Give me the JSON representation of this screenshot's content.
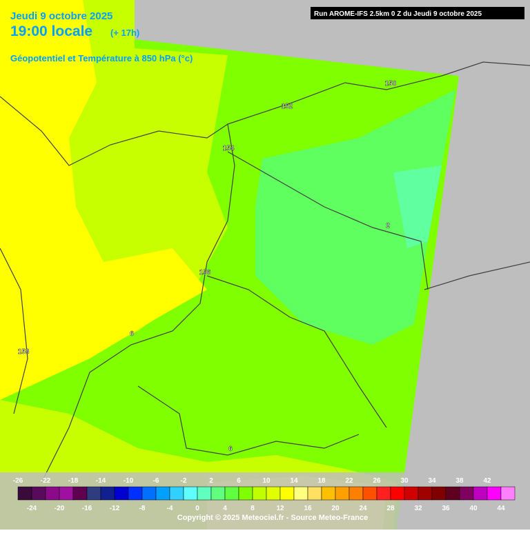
{
  "header": {
    "date": "Jeudi 9 octobre 2025",
    "time": "19:00 locale",
    "lead": "(+ 17h)",
    "field": "Géopotentiel et Température à 850 hPa (°c)",
    "run": "Run AROME-IFS 2.5km 0 Z du Jeudi 9 octobre 2025"
  },
  "contour_labels": [
    {
      "text": "150"
    },
    {
      "text": "152"
    },
    {
      "text": "154"
    },
    {
      "text": "156"
    },
    {
      "text": "158"
    },
    {
      "text": "2"
    },
    {
      "text": "6"
    },
    {
      "text": "6"
    }
  ],
  "legend": {
    "top_labels": [
      -26,
      -22,
      -18,
      -14,
      -10,
      -6,
      -2,
      2,
      6,
      10,
      14,
      18,
      22,
      26,
      30,
      34,
      38,
      42
    ],
    "bottom_labels": [
      -24,
      -20,
      -16,
      -12,
      -8,
      -4,
      0,
      4,
      8,
      12,
      16,
      20,
      24,
      28,
      32,
      36,
      40,
      44
    ],
    "colors": [
      "#3a0a3a",
      "#5a0a5a",
      "#8a0a8a",
      "#a010a0",
      "#600050",
      "#303c80",
      "#102090",
      "#0000d0",
      "#0030ff",
      "#0070ff",
      "#00a0ff",
      "#30d0ff",
      "#60ffff",
      "#60ffc0",
      "#60ff80",
      "#60ff40",
      "#80ff00",
      "#c0ff00",
      "#e0ff00",
      "#ffff00",
      "#ffff80",
      "#ffe060",
      "#ffc000",
      "#ffa000",
      "#ff8000",
      "#ff5000",
      "#ff2020",
      "#ff0000",
      "#d00000",
      "#a00000",
      "#800000",
      "#600020",
      "#800060",
      "#c000c0",
      "#ff00ff",
      "#ff80ff"
    ]
  },
  "copyright": "Copyright © 2025 Meteociel.fr - Source Meteo-France"
}
